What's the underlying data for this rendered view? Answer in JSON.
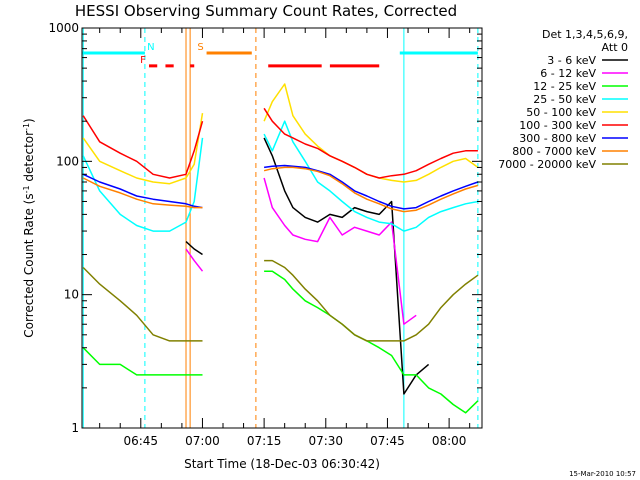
{
  "chart_data": {
    "type": "line",
    "title": "HESSI Observing Summary Count Rates, Corrected",
    "xlabel": "Start Time (18-Dec-03 06:30:42)",
    "ylabel": "Corrected Count Rate (s⁻¹ detector⁻¹)",
    "ylabel_parts": [
      "Corrected Count Rate (s",
      "-1",
      " detector",
      "-1",
      ")"
    ],
    "yscale": "log",
    "ylim": [
      1,
      1000
    ],
    "xlim": [
      "06:30:42",
      "08:08:00"
    ],
    "grid": false,
    "x_tick_labels": [
      "06:45",
      "07:00",
      "07:15",
      "07:30",
      "07:45",
      "08:00"
    ],
    "y_tick_labels": [
      "1",
      "10",
      "100",
      "1000"
    ],
    "legend_header": [
      "Det 1,3,4,5,6,9,",
      "Att 0"
    ],
    "legend_position": "right, outside plot",
    "timestamp": "15-Mar-2010 10:57",
    "x": [
      "06:31",
      "06:35",
      "06:40",
      "06:44",
      "06:48",
      "06:52",
      "06:56",
      "06:58",
      "07:00",
      "07:01",
      "07:13",
      "07:15",
      "07:17",
      "07:20",
      "07:22",
      "07:25",
      "07:28",
      "07:31",
      "07:34",
      "07:37",
      "07:40",
      "07:43",
      "07:46",
      "07:49",
      "07:52",
      "07:55",
      "07:58",
      "08:01",
      "08:04",
      "08:07"
    ],
    "series": [
      {
        "name": "3 - 6 keV",
        "color": "#000000",
        "values": [
          null,
          null,
          null,
          null,
          null,
          null,
          25,
          22,
          20,
          null,
          null,
          150,
          110,
          60,
          45,
          38,
          35,
          40,
          38,
          45,
          42,
          40,
          50,
          1.8,
          2.5,
          3,
          null,
          null,
          null,
          null
        ]
      },
      {
        "name": "6 - 12 keV",
        "color": "#ff00ff",
        "values": [
          null,
          null,
          null,
          null,
          null,
          null,
          22,
          18,
          15,
          null,
          null,
          75,
          45,
          33,
          28,
          26,
          25,
          38,
          28,
          32,
          30,
          28,
          35,
          6,
          7,
          null,
          null,
          null,
          null,
          null
        ]
      },
      {
        "name": "12 - 25 keV",
        "color": "#00ff00",
        "values": [
          4,
          3,
          3,
          2.5,
          2.5,
          2.5,
          2.5,
          2.5,
          2.5,
          null,
          null,
          15,
          15,
          13,
          11,
          9,
          8,
          7,
          6,
          5,
          4.5,
          4,
          3.5,
          2.5,
          2.5,
          2,
          1.8,
          1.5,
          1.3,
          1.6
        ]
      },
      {
        "name": "25 - 50 keV",
        "color": "#00ffff",
        "values": [
          110,
          60,
          40,
          33,
          30,
          30,
          35,
          50,
          150,
          null,
          null,
          160,
          120,
          200,
          140,
          100,
          70,
          60,
          50,
          42,
          38,
          35,
          34,
          30,
          32,
          38,
          42,
          45,
          48,
          50
        ]
      },
      {
        "name": "50 - 100 keV",
        "color": "#ffe000",
        "values": [
          150,
          100,
          85,
          75,
          70,
          68,
          75,
          95,
          230,
          null,
          null,
          200,
          280,
          380,
          220,
          160,
          130,
          110,
          100,
          90,
          80,
          75,
          72,
          70,
          72,
          80,
          90,
          100,
          105,
          90
        ]
      },
      {
        "name": "100 - 300 keV",
        "color": "#ff0000",
        "values": [
          220,
          140,
          115,
          100,
          80,
          75,
          80,
          120,
          200,
          null,
          null,
          250,
          200,
          160,
          150,
          135,
          125,
          110,
          100,
          90,
          80,
          75,
          78,
          80,
          85,
          95,
          105,
          115,
          120,
          120
        ]
      },
      {
        "name": "300 - 800 keV",
        "color": "#0000ff",
        "values": [
          80,
          70,
          62,
          55,
          52,
          50,
          48,
          46,
          45,
          null,
          null,
          90,
          92,
          93,
          92,
          90,
          85,
          80,
          70,
          60,
          55,
          50,
          46,
          44,
          45,
          50,
          55,
          60,
          65,
          70
        ]
      },
      {
        "name": "800 - 7000 keV",
        "color": "#ff8000",
        "values": [
          75,
          65,
          58,
          52,
          48,
          47,
          46,
          45,
          45,
          null,
          null,
          85,
          88,
          90,
          90,
          88,
          84,
          78,
          68,
          58,
          52,
          48,
          44,
          42,
          43,
          47,
          52,
          57,
          62,
          66
        ]
      },
      {
        "name": "7000 - 20000 keV",
        "color": "#808000",
        "values": [
          16,
          12,
          9,
          7,
          5,
          4.5,
          4.5,
          4.5,
          4.5,
          null,
          null,
          18,
          18,
          16,
          14,
          11,
          9,
          7,
          6,
          5,
          4.5,
          4.5,
          4.5,
          4.5,
          5,
          6,
          8,
          10,
          12,
          14
        ]
      }
    ],
    "flags": {
      "saa_night_bar": {
        "color": "#00ffff",
        "label": "N",
        "level": 650,
        "spans": [
          [
            "06:30:42",
            "06:46"
          ],
          [
            "07:48",
            "08:07"
          ]
        ]
      },
      "flare_bar": {
        "color": "#ff0000",
        "label": "F",
        "level": 520,
        "spans": [
          [
            "06:47",
            "06:49"
          ],
          [
            "06:51",
            "06:53"
          ],
          [
            "06:57",
            "06:58"
          ],
          [
            "07:16",
            "07:29"
          ],
          [
            "07:31",
            "07:43"
          ]
        ]
      },
      "slew_bar": {
        "color": "#ff8000",
        "label": "S",
        "level": 650,
        "spans": [
          [
            "07:01",
            "07:12"
          ]
        ]
      }
    },
    "vertical_markers": [
      {
        "time": "06:46",
        "color": "#00ffff",
        "style": "dashed"
      },
      {
        "time": "06:56",
        "color": "#ff8000",
        "style": "solid"
      },
      {
        "time": "06:57",
        "color": "#ff8000",
        "style": "solid"
      },
      {
        "time": "07:13",
        "color": "#ff8000",
        "style": "dashed"
      },
      {
        "time": "07:49",
        "color": "#00ffff",
        "style": "solid"
      },
      {
        "time": "08:07",
        "color": "#00ffff",
        "style": "dashed"
      },
      {
        "time": "06:31",
        "color": "#00ffff",
        "style": "solid"
      }
    ]
  }
}
